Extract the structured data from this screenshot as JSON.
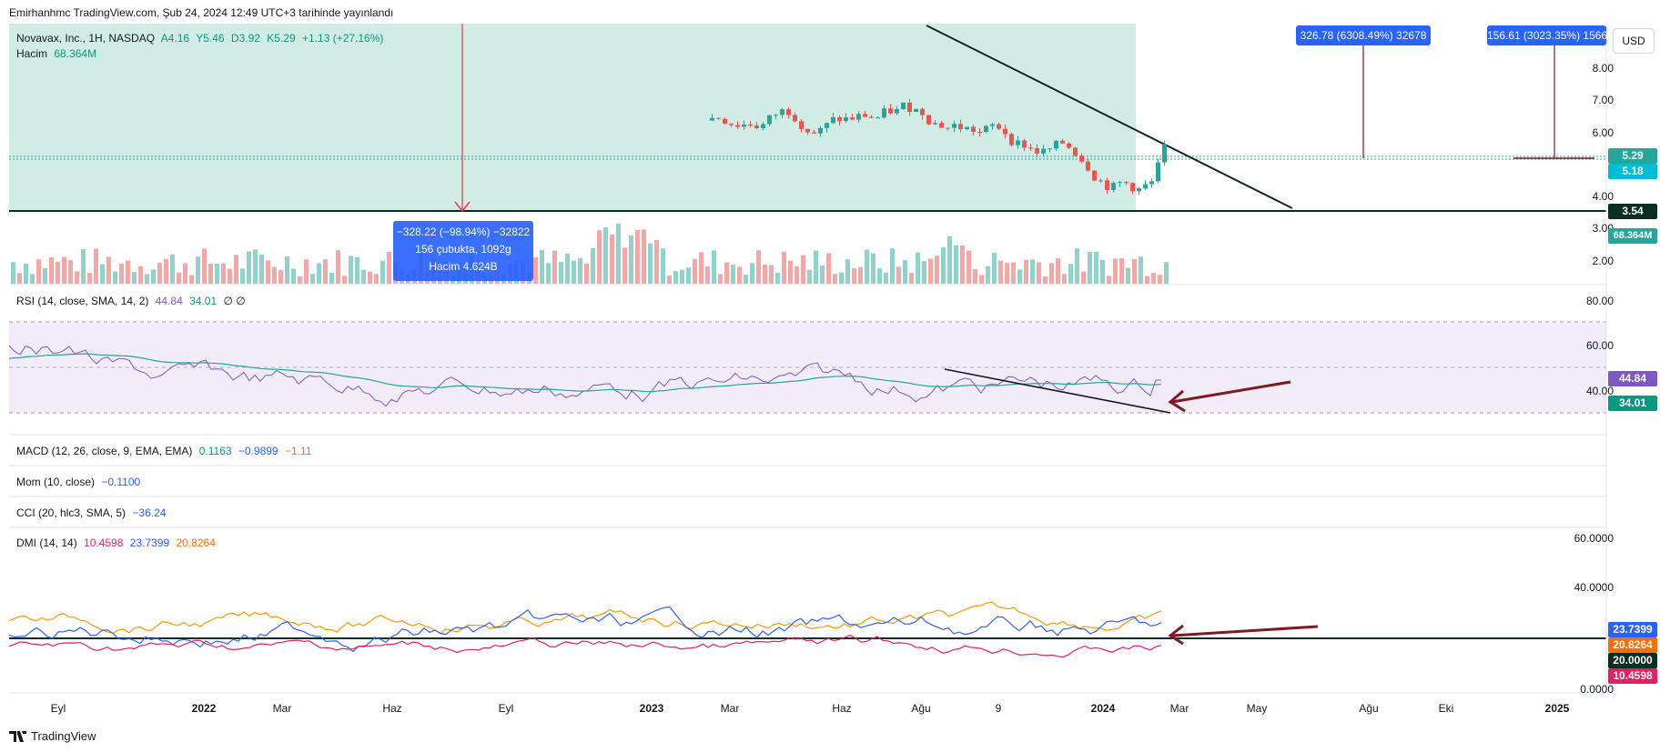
{
  "header": {
    "published": "Emirhanhmc TradingView.com, Şub 24, 2024 12:49 UTC+3 tarihinde yayınlandı"
  },
  "main_pane": {
    "symbol": "Novavax, Inc., 1H, NASDAQ",
    "open": "A4.16",
    "high": "Y5.46",
    "low": "D3.92",
    "close": "K5.29",
    "change": "+1.13 (+27.16%)",
    "volume_label": "Hacim",
    "volume_value": "68.364M",
    "currency_button": "USD",
    "y_ticks": [
      "8.00",
      "7.00",
      "6.00",
      "4.00",
      "3.00",
      "2.00"
    ],
    "price_tags": {
      "last": "5.29",
      "prev": "5.18",
      "support": "3.54",
      "volume": "68.364M"
    },
    "callout_down": {
      "line1": "−328.22 (−98.94%) −32822",
      "line2": "156 çubukta, 1092g",
      "line3": "Hacim 4.624B"
    },
    "callout_up1": "326.78 (6308.49%) 32678",
    "callout_up2": "156.61 (3023.35%) 1566"
  },
  "rsi_pane": {
    "label": "RSI (14, close, SMA, 14, 2)",
    "v1": "44.84",
    "v2": "34.01",
    "v3": "∅ ∅",
    "y_ticks": [
      "80.00",
      "60.00",
      "40.00"
    ],
    "tags": {
      "rsi": "44.84",
      "ma": "34.01"
    }
  },
  "macd_pane": {
    "label": "MACD (12, 26, close, 9, EMA, EMA)",
    "v1": "0.1163",
    "v2": "−0.9899",
    "v3": "−1.11"
  },
  "mom_pane": {
    "label": "Mom (10, close)",
    "v1": "−0.1100"
  },
  "cci_pane": {
    "label": "CCI (20, hlc3, SMA, 5)",
    "v1": "−36.24"
  },
  "dmi_pane": {
    "label": "DMI (14, 14)",
    "v1": "10.4598",
    "v2": "23.7399",
    "v3": "20.8264",
    "y_ticks": [
      "60.0000",
      "40.0000",
      "0.0000"
    ],
    "tags": {
      "plus": "23.7399",
      "adx": "20.8264",
      "level": "20.0000",
      "minus": "10.4598"
    }
  },
  "x_axis": [
    "Eyl",
    "2022",
    "Mar",
    "Haz",
    "Eyl",
    "2023",
    "Mar",
    "Haz",
    "Ağu",
    "9",
    "2024",
    "Mar",
    "May",
    "Ağu",
    "Eki",
    "2025"
  ],
  "footer": {
    "brand": "TradingView"
  },
  "colors": {
    "up": "#26a69a",
    "down": "#ef5350",
    "rsi": "#7e57c2",
    "dmi_plus": "#2962ff",
    "dmi_minus": "#e91e63",
    "adx": "#ff9800",
    "arrow": "#801922"
  }
}
